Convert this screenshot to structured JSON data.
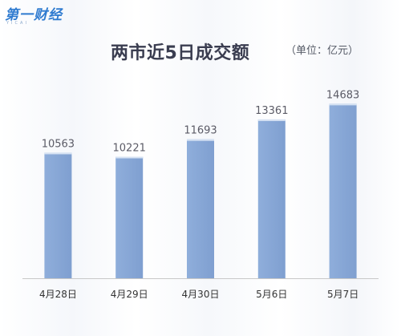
{
  "logo": {
    "name": "第一财经",
    "sub": "YICAI"
  },
  "chart_data": {
    "type": "bar",
    "title": "两市近5日成交额",
    "unit": "（单位：亿元）",
    "categories": [
      "4月28日",
      "4月29日",
      "4月30日",
      "5月6日",
      "5月7日"
    ],
    "values": [
      10563,
      10221,
      11693,
      13361,
      14683
    ],
    "xlabel": "",
    "ylabel": "",
    "ylim": [
      0,
      17000
    ],
    "grid": false,
    "legend": "none",
    "colors": {
      "bar": "#8faedb",
      "bar_top": "#d6e2f3",
      "bar_edge": "#7f9fd0",
      "value_label": "#5b5b66",
      "category_label": "#333333",
      "axis": "#c8c8c8"
    }
  }
}
